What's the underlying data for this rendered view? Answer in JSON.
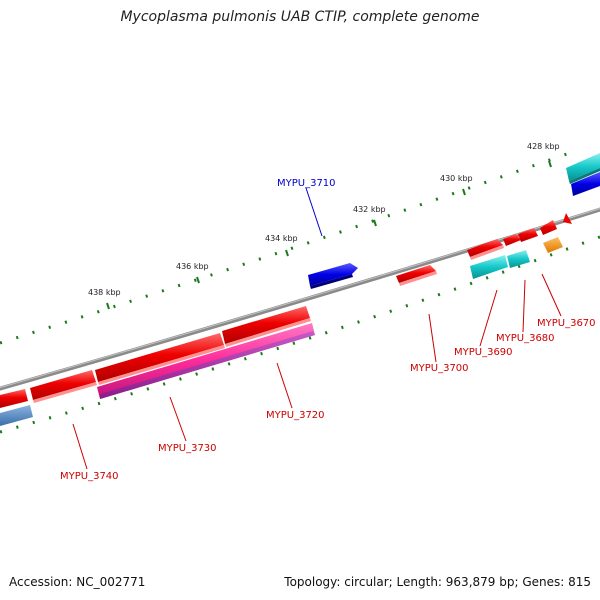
{
  "title": "Mycoplasma pulmonis UAB CTIP, complete genome",
  "footer": {
    "accession": "Accession: NC_002771",
    "summary": "Topology: circular; Length: 963,879 bp; Genes: 815"
  },
  "colors": {
    "backbone": "#7a7a7a",
    "tick": "#1b7a1b",
    "plus_gene_label": "#0000cc",
    "minus_gene_label": "#cc0000"
  },
  "scale_labels": [
    "428 kbp",
    "430 kbp",
    "432 kbp",
    "434 kbp",
    "436 kbp",
    "438 kbp"
  ],
  "genes": [
    {
      "label": "MYPU_3670",
      "color": "#e60000"
    },
    {
      "label": "MYPU_3680",
      "color": "#e60000"
    },
    {
      "label": "MYPU_3690",
      "color": "#14c8c8"
    },
    {
      "label": "MYPU_3700",
      "color": "#e60000"
    },
    {
      "label": "MYPU_3710",
      "color": "#0000e6"
    },
    {
      "label": "MYPU_3720",
      "color": "#ff2a9a"
    },
    {
      "label": "MYPU_3730",
      "color": "#e60000"
    },
    {
      "label": "MYPU_3740",
      "color": "#e60000"
    }
  ]
}
